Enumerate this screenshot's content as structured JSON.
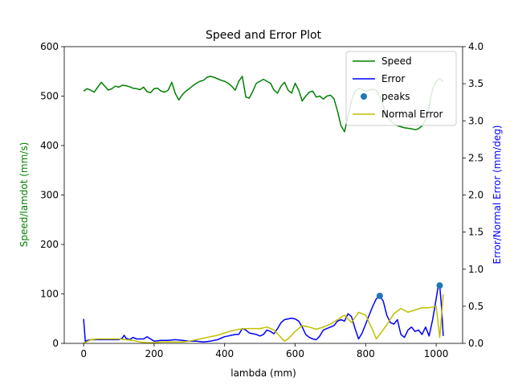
{
  "chart_data": {
    "type": "line",
    "title": "Speed and Error Plot",
    "xlabel": "lambda (mm)",
    "ylabel_left": "Speed/lamdot (mm/s)",
    "ylabel_right": "Error/Normal Error (mm/deg)",
    "xlim": [
      -55,
      1075
    ],
    "ylim_left": [
      0,
      600
    ],
    "ylim_right": [
      0,
      4.0
    ],
    "xticks": [
      "0",
      "200",
      "400",
      "600",
      "800",
      "1000"
    ],
    "yticks_left": [
      "0",
      "100",
      "200",
      "300",
      "400",
      "500",
      "600"
    ],
    "yticks_right": [
      "0.0",
      "0.5",
      "1.0",
      "1.5",
      "2.0",
      "2.5",
      "3.0",
      "3.5",
      "4.0"
    ],
    "xtick_values": [
      0,
      200,
      400,
      600,
      800,
      1000
    ],
    "ytick_values_left": [
      0,
      100,
      200,
      300,
      400,
      500,
      600
    ],
    "ytick_values_right": [
      0,
      0.5,
      1.0,
      1.5,
      2.0,
      2.5,
      3.0,
      3.5,
      4.0
    ],
    "left_label_color": "#008000",
    "right_label_color": "#0000ff",
    "legend": {
      "placement": "top-right"
    },
    "series": [
      {
        "name": "Speed",
        "axis": "left",
        "color": "#008000",
        "kind": "line",
        "x": [
          0,
          10,
          20,
          30,
          40,
          50,
          60,
          70,
          80,
          90,
          100,
          110,
          120,
          130,
          140,
          150,
          160,
          170,
          180,
          190,
          200,
          210,
          220,
          230,
          240,
          250,
          260,
          270,
          280,
          290,
          300,
          310,
          320,
          330,
          340,
          350,
          360,
          370,
          380,
          390,
          400,
          410,
          420,
          430,
          440,
          450,
          460,
          470,
          480,
          490,
          500,
          510,
          520,
          530,
          540,
          550,
          560,
          570,
          580,
          590,
          600,
          610,
          620,
          630,
          640,
          650,
          660,
          670,
          680,
          690,
          700,
          710,
          720,
          730,
          740,
          750,
          760,
          770,
          780,
          790,
          800,
          810,
          820,
          830,
          840,
          850,
          860,
          870,
          880,
          890,
          900,
          910,
          920,
          930,
          940,
          950,
          960,
          970,
          980,
          990,
          1000,
          1010,
          1020
        ],
        "y": [
          510,
          515,
          512,
          508,
          518,
          528,
          520,
          512,
          515,
          520,
          518,
          522,
          521,
          519,
          516,
          515,
          513,
          518,
          509,
          507,
          515,
          516,
          510,
          508,
          512,
          528,
          505,
          492,
          503,
          510,
          515,
          521,
          526,
          530,
          532,
          538,
          540,
          538,
          535,
          532,
          530,
          526,
          520,
          512,
          530,
          540,
          498,
          496,
          510,
          526,
          530,
          534,
          530,
          526,
          512,
          506,
          520,
          528,
          512,
          506,
          526,
          512,
          490,
          500,
          508,
          510,
          498,
          500,
          494,
          500,
          502,
          495,
          470,
          440,
          428,
          460,
          490,
          510,
          515,
          514,
          510,
          512,
          514,
          512,
          500,
          480,
          460,
          450,
          445,
          440,
          438,
          436,
          435,
          434,
          432,
          434,
          440,
          452,
          480,
          515,
          530,
          535,
          530
        ]
      },
      {
        "name": "Error",
        "axis": "right",
        "color": "#0000ff",
        "kind": "line",
        "x": [
          0,
          5,
          10,
          20,
          40,
          60,
          80,
          100,
          110,
          115,
          120,
          130,
          140,
          150,
          160,
          170,
          180,
          190,
          200,
          220,
          240,
          260,
          280,
          300,
          320,
          340,
          360,
          380,
          390,
          400,
          410,
          420,
          430,
          440,
          450,
          460,
          470,
          480,
          490,
          500,
          510,
          520,
          530,
          540,
          550,
          560,
          570,
          580,
          590,
          600,
          610,
          620,
          630,
          640,
          650,
          660,
          670,
          680,
          690,
          700,
          710,
          720,
          730,
          740,
          750,
          760,
          770,
          780,
          790,
          800,
          810,
          820,
          830,
          840,
          850,
          860,
          870,
          880,
          890,
          900,
          910,
          920,
          930,
          940,
          950,
          960,
          970,
          980,
          990,
          1000,
          1005,
          1010,
          1015,
          1020
        ],
        "y": [
          0.33,
          0.02,
          0.04,
          0.05,
          0.05,
          0.05,
          0.05,
          0.05,
          0.07,
          0.11,
          0.07,
          0.05,
          0.08,
          0.06,
          0.06,
          0.06,
          0.09,
          0.06,
          0.03,
          0.04,
          0.04,
          0.05,
          0.04,
          0.03,
          0.03,
          0.02,
          0.03,
          0.05,
          0.07,
          0.09,
          0.1,
          0.11,
          0.12,
          0.12,
          0.2,
          0.18,
          0.14,
          0.13,
          0.12,
          0.1,
          0.12,
          0.18,
          0.16,
          0.13,
          0.2,
          0.28,
          0.32,
          0.33,
          0.34,
          0.33,
          0.3,
          0.22,
          0.12,
          0.08,
          0.06,
          0.05,
          0.1,
          0.18,
          0.2,
          0.22,
          0.24,
          0.3,
          0.32,
          0.3,
          0.4,
          0.36,
          0.2,
          0.06,
          0.14,
          0.26,
          0.38,
          0.5,
          0.6,
          0.64,
          0.57,
          0.38,
          0.28,
          0.26,
          0.32,
          0.12,
          0.08,
          0.18,
          0.22,
          0.16,
          0.18,
          0.12,
          0.22,
          0.1,
          0.32,
          0.6,
          0.75,
          0.78,
          0.5,
          0.1
        ]
      },
      {
        "name": "peaks",
        "axis": "right",
        "color": "#1f77b4",
        "kind": "scatter",
        "x": [
          840,
          1010
        ],
        "y": [
          0.64,
          0.78
        ]
      },
      {
        "name": "Normal Error",
        "axis": "right",
        "color": "#bfbf00",
        "kind": "line",
        "x": [
          0,
          20,
          40,
          60,
          80,
          100,
          120,
          140,
          160,
          180,
          200,
          220,
          240,
          260,
          280,
          300,
          320,
          340,
          360,
          380,
          400,
          420,
          440,
          460,
          480,
          500,
          520,
          540,
          560,
          570,
          580,
          600,
          620,
          640,
          660,
          680,
          700,
          720,
          740,
          760,
          780,
          800,
          820,
          830,
          840,
          860,
          880,
          900,
          920,
          940,
          960,
          980,
          1000,
          1010,
          1020
        ],
        "y": [
          0.0,
          0.05,
          0.06,
          0.06,
          0.06,
          0.06,
          0.05,
          0.04,
          0.02,
          0.01,
          0.01,
          0.02,
          0.02,
          0.02,
          0.02,
          0.03,
          0.05,
          0.07,
          0.09,
          0.11,
          0.14,
          0.17,
          0.19,
          0.2,
          0.2,
          0.2,
          0.22,
          0.18,
          0.08,
          0.03,
          0.06,
          0.16,
          0.24,
          0.22,
          0.19,
          0.22,
          0.26,
          0.32,
          0.38,
          0.28,
          0.42,
          0.38,
          0.18,
          0.06,
          0.12,
          0.25,
          0.4,
          0.47,
          0.42,
          0.45,
          0.48,
          0.48,
          0.5,
          0.08,
          0.66
        ]
      }
    ]
  }
}
